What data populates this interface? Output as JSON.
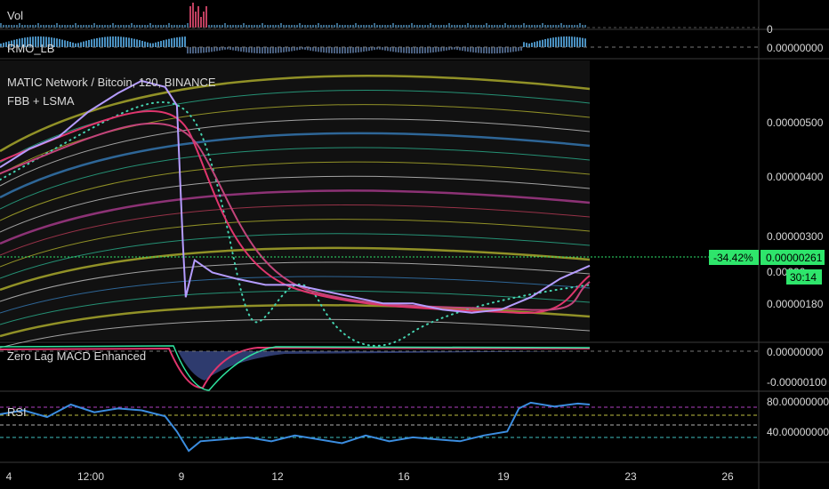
{
  "chart_data": [
    {
      "type": "bar",
      "panel": "volume",
      "title": "Vol",
      "yticks": [
        "0"
      ],
      "categories": [
        "4",
        "12:00",
        "9",
        "12",
        "16",
        "19",
        "23",
        "26"
      ],
      "description_values": [
        0.3,
        0.4,
        0.3,
        0.3,
        0.3,
        1.0,
        0.7,
        0.3,
        0.2,
        0.2,
        0.2,
        0.2
      ]
    },
    {
      "type": "area",
      "panel": "rmo",
      "title": "RMO_LB",
      "yticks": [
        "0.00000000"
      ]
    },
    {
      "type": "line",
      "panel": "price",
      "title": "MATIC Network / Bitcoin, 120, BINANCE",
      "subtitle": "FBB + LSMA",
      "yticks": [
        "0.00000500",
        "0.00000400",
        "0.00000300",
        "0.00000180"
      ],
      "ylim": [
        1.4e-06,
        5.9e-06
      ],
      "price_label": "0.00000261",
      "change_label": "-34.42%",
      "countdown_label": "30:14",
      "hidden_label": "0.00000",
      "series": [
        {
          "name": "price",
          "x": [
            0,
            0.05,
            0.1,
            0.15,
            0.2,
            0.24,
            0.28,
            0.3,
            0.31,
            0.315,
            0.33,
            0.36,
            0.4,
            0.45,
            0.5,
            0.55,
            0.6,
            0.65,
            0.7,
            0.75,
            0.8,
            0.85,
            0.9,
            0.95,
            1.0
          ],
          "values": [
            4.2,
            4.5,
            4.7,
            5.1,
            5.4,
            5.6,
            5.5,
            5.2,
            3.0,
            2.1,
            2.7,
            2.5,
            2.4,
            2.3,
            2.3,
            2.2,
            2.1,
            2.0,
            2.0,
            1.9,
            1.85,
            1.9,
            2.1,
            2.4,
            2.61
          ]
        }
      ]
    },
    {
      "type": "line",
      "panel": "macd",
      "title": "Zero Lag MACD Enhanced",
      "yticks": [
        "0.00000000",
        "-0.00000100"
      ]
    },
    {
      "type": "line",
      "panel": "rsi",
      "title": "RSI",
      "yticks": [
        "80.00000000",
        "40.00000000"
      ],
      "ylim": [
        20,
        90
      ],
      "series": [
        {
          "name": "RSI",
          "x": [
            0,
            0.04,
            0.08,
            0.12,
            0.16,
            0.2,
            0.24,
            0.28,
            0.3,
            0.32,
            0.34,
            0.38,
            0.42,
            0.46,
            0.5,
            0.54,
            0.58,
            0.62,
            0.66,
            0.7,
            0.74,
            0.78,
            0.82,
            0.86,
            0.88,
            0.9,
            0.94,
            0.98,
            1.0
          ],
          "values": [
            68,
            72,
            65,
            78,
            70,
            74,
            72,
            66,
            50,
            30,
            40,
            42,
            44,
            40,
            46,
            42,
            38,
            46,
            40,
            44,
            42,
            40,
            46,
            50,
            74,
            80,
            76,
            79,
            78
          ]
        }
      ]
    }
  ],
  "xaxis": {
    "labels": [
      "4",
      "12:00",
      "9",
      "12",
      "16",
      "19",
      "23",
      "26"
    ]
  },
  "colors": {
    "background": "#000000",
    "grid": "#2a2a2a",
    "rsi": "#3b8de0",
    "accent": "#2ee56b"
  }
}
